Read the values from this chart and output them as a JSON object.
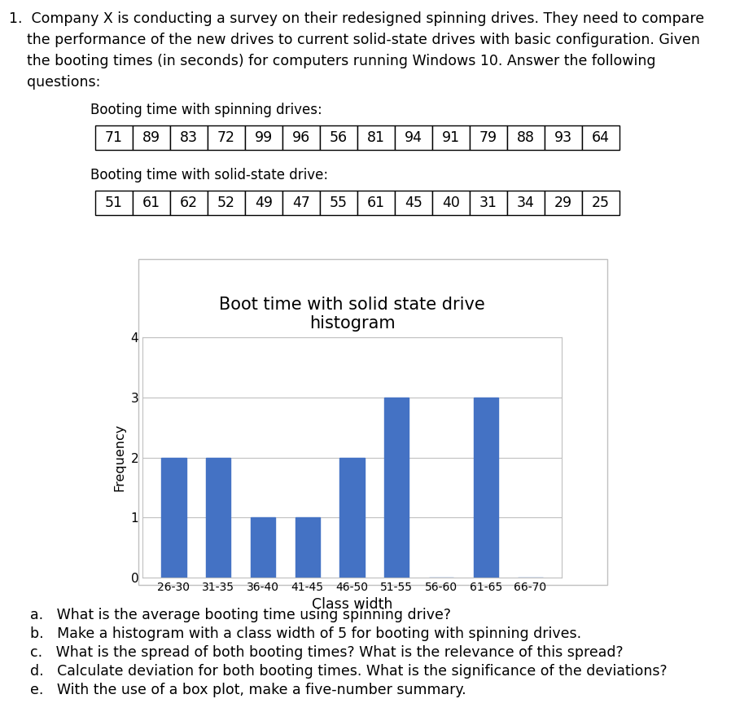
{
  "para_lines": [
    "1.  Company X is conducting a survey on their redesigned spinning drives. They need to compare",
    "    the performance of the new drives to current solid-state drives with basic configuration. Given",
    "    the booting times (in seconds) for computers running Windows 10. Answer the following",
    "    questions:"
  ],
  "spinning_label": "Booting time with spinning drives:",
  "spinning_data": [
    71,
    89,
    83,
    72,
    99,
    96,
    56,
    81,
    94,
    91,
    79,
    88,
    93,
    64
  ],
  "ssd_label": "Booting time with solid-state drive:",
  "ssd_data": [
    51,
    61,
    62,
    52,
    49,
    47,
    55,
    61,
    45,
    40,
    31,
    34,
    29,
    25
  ],
  "hist_title_line1": "Boot time with solid state drive",
  "hist_title_line2": "histogram",
  "hist_categories": [
    "26-30",
    "31-35",
    "36-40",
    "41-45",
    "46-50",
    "51-55",
    "56-60",
    "61-65",
    "66-70"
  ],
  "hist_values": [
    2,
    2,
    1,
    1,
    2,
    3,
    0,
    3,
    0
  ],
  "bar_color": "#4472C4",
  "xlabel": "Class width",
  "ylabel": "Frequency",
  "ylim": [
    0,
    4
  ],
  "yticks": [
    0,
    1,
    2,
    3,
    4
  ],
  "questions": [
    "a.   What is the average booting time using spinning drive?",
    "b.   Make a histogram with a class width of 5 for booting with spinning drives.",
    "c.   What is the spread of both booting times? What is the relevance of this spread?",
    "d.   Calculate deviation for both booting times. What is the significance of the deviations?",
    "e.   With the use of a box plot, make a five-number summary."
  ],
  "bg_color": "#ffffff",
  "text_color": "#000000",
  "font_size_main": 12.5,
  "font_size_label": 12.0,
  "font_size_table": 12.5,
  "font_size_hist_title": 15,
  "font_size_axis_label": 11.5,
  "font_size_tick": 10,
  "font_size_questions": 12.5
}
